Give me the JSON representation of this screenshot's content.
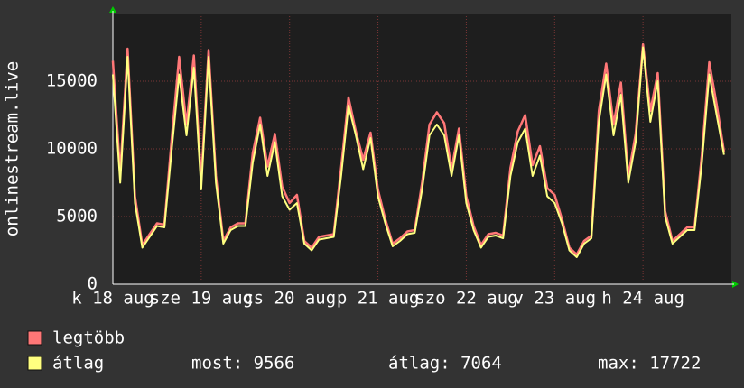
{
  "chart_data": {
    "type": "line",
    "y_axis_label": "onlinestream.live",
    "categories": [
      "k 18 aug",
      null,
      null,
      null,
      null,
      null,
      null,
      null,
      null,
      null,
      null,
      null,
      "sze 19 aug",
      null,
      null,
      null,
      null,
      null,
      null,
      null,
      null,
      null,
      null,
      null,
      "cs 20 aug",
      null,
      null,
      null,
      null,
      null,
      null,
      null,
      null,
      null,
      null,
      null,
      "p 21 aug",
      null,
      null,
      null,
      null,
      null,
      null,
      null,
      null,
      null,
      null,
      null,
      "szo 22 aug",
      null,
      null,
      null,
      null,
      null,
      null,
      null,
      null,
      null,
      null,
      null,
      "v 23 aug",
      null,
      null,
      null,
      null,
      null,
      null,
      null,
      null,
      null,
      null,
      null,
      "h 24 aug",
      null,
      null,
      null,
      null,
      null,
      null,
      null,
      null,
      null,
      null,
      null
    ],
    "series": [
      {
        "name": "legtöbb",
        "color": "#ff7777",
        "values": [
          16500,
          8200,
          17400,
          6500,
          2900,
          3700,
          4500,
          4400,
          10800,
          16800,
          11800,
          16900,
          7600,
          17300,
          8000,
          3200,
          4200,
          4500,
          4500,
          9700,
          12300,
          8700,
          11100,
          7200,
          6000,
          6600,
          3200,
          2700,
          3500,
          3600,
          3700,
          8600,
          13800,
          11300,
          9200,
          11200,
          7000,
          4800,
          3000,
          3400,
          3900,
          4000,
          7500,
          11800,
          12700,
          11900,
          8500,
          11500,
          6500,
          4300,
          2900,
          3700,
          3800,
          3600,
          8600,
          11300,
          12500,
          8800,
          10200,
          7100,
          6600,
          4800,
          2700,
          2200,
          3200,
          3600,
          12800,
          16300,
          11800,
          14900,
          8000,
          11100,
          17722,
          12800,
          15600,
          5400,
          3200,
          3700,
          4200,
          4200,
          9600,
          16400,
          13300,
          9800
        ]
      },
      {
        "name": "átlag",
        "color": "#ffff80",
        "values": [
          15500,
          7500,
          16800,
          6000,
          2700,
          3500,
          4300,
          4200,
          10000,
          15500,
          11000,
          16000,
          7000,
          16800,
          7500,
          3000,
          4000,
          4300,
          4300,
          9000,
          11800,
          8000,
          10500,
          6500,
          5500,
          6000,
          3000,
          2500,
          3300,
          3400,
          3500,
          8000,
          13200,
          11000,
          8500,
          10800,
          6500,
          4500,
          2800,
          3200,
          3700,
          3800,
          7000,
          11000,
          11800,
          11000,
          8000,
          11000,
          6000,
          4000,
          2700,
          3500,
          3600,
          3400,
          8000,
          10500,
          11500,
          8000,
          9500,
          6500,
          6000,
          4500,
          2500,
          2000,
          3000,
          3400,
          12000,
          15500,
          11000,
          14000,
          7500,
          10500,
          17500,
          12000,
          15000,
          5000,
          3000,
          3500,
          4000,
          4000,
          9000,
          15500,
          12500,
          9566
        ]
      }
    ],
    "stats": [
      "most: 9566",
      "átlag: 7064",
      "max: 17722"
    ],
    "ylim": [
      0,
      20000
    ],
    "yticks": [
      0,
      5000,
      10000,
      15000
    ],
    "grid": true
  }
}
